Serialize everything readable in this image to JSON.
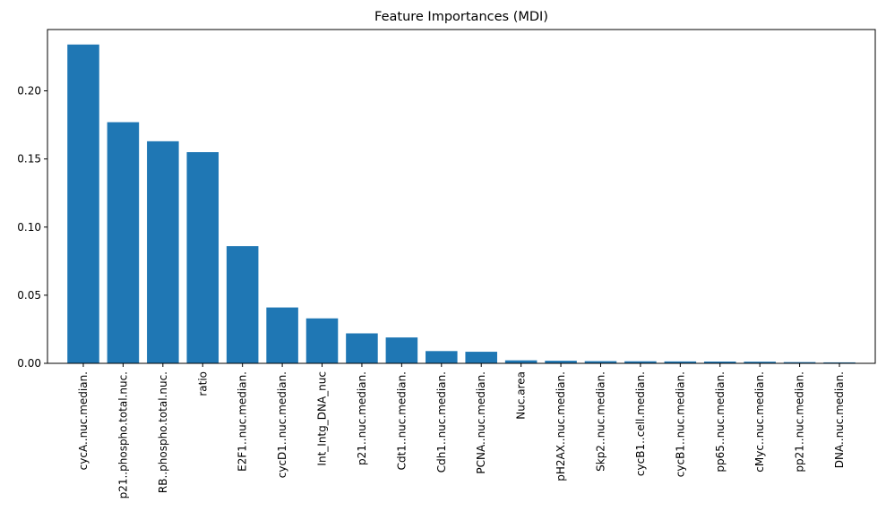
{
  "chart_data": {
    "type": "bar",
    "title": "Feature Importances (MDI)",
    "xlabel": "",
    "ylabel": "",
    "ylim": [
      0,
      0.245
    ],
    "yticks": [
      "0.00",
      "0.05",
      "0.10",
      "0.15",
      "0.20"
    ],
    "grid": false,
    "legend": "none",
    "bar_color": "#1f77b4",
    "categories": [
      "cycA..nuc.median.",
      "p21..phospho.total.nuc.",
      "RB..phospho.total.nuc.",
      "ratio",
      "E2F1..nuc.median.",
      "cycD1..nuc.median.",
      "Int_Intg_DNA_nuc",
      "p21..nuc.median.",
      "Cdt1..nuc.median.",
      "Cdh1..nuc.median.",
      "PCNA..nuc.median.",
      "Nuc.area",
      "pH2AX..nuc.median.",
      "Skp2..nuc.median.",
      "cycB1..cell.median.",
      "cycB1..nuc.median.",
      "pp65..nuc.median.",
      "cMyc..nuc.median.",
      "pp21..nuc.median.",
      "DNA..nuc.median."
    ],
    "values": [
      0.234,
      0.177,
      0.163,
      0.155,
      0.086,
      0.041,
      0.033,
      0.022,
      0.019,
      0.009,
      0.0085,
      0.0022,
      0.0019,
      0.0016,
      0.0015,
      0.0014,
      0.0013,
      0.0012,
      0.0009,
      0.0007
    ]
  }
}
